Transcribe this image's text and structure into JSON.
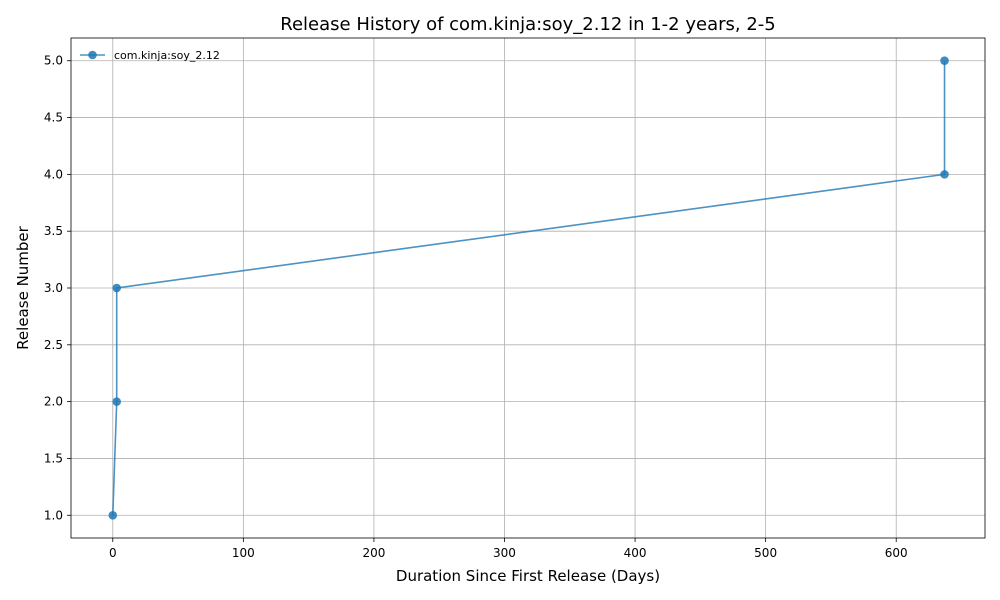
{
  "chart_data": {
    "type": "line",
    "title": "Release History of com.kinja:soy_2.12 in 1-2 years, 2-5",
    "xlabel": "Duration Since First Release (Days)",
    "ylabel": "Release Number",
    "xlim": [
      -32,
      668
    ],
    "ylim": [
      0.8,
      5.2
    ],
    "xticks": [
      0,
      100,
      200,
      300,
      400,
      500,
      600
    ],
    "yticks": [
      1.0,
      1.5,
      2.0,
      2.5,
      3.0,
      3.5,
      4.0,
      4.5,
      5.0
    ],
    "xtick_labels": [
      "0",
      "100",
      "200",
      "300",
      "400",
      "500",
      "600"
    ],
    "ytick_labels": [
      "1.0",
      "1.5",
      "2.0",
      "2.5",
      "3.0",
      "3.5",
      "4.0",
      "4.5",
      "5.0"
    ],
    "grid": true,
    "legend_position": "top-left",
    "series": [
      {
        "name": "com.kinja:soy_2.12",
        "color": "#1f77b4",
        "marker": "circle",
        "x": [
          0,
          3,
          3,
          637,
          637
        ],
        "y": [
          1,
          2,
          3,
          4,
          5
        ]
      }
    ]
  }
}
